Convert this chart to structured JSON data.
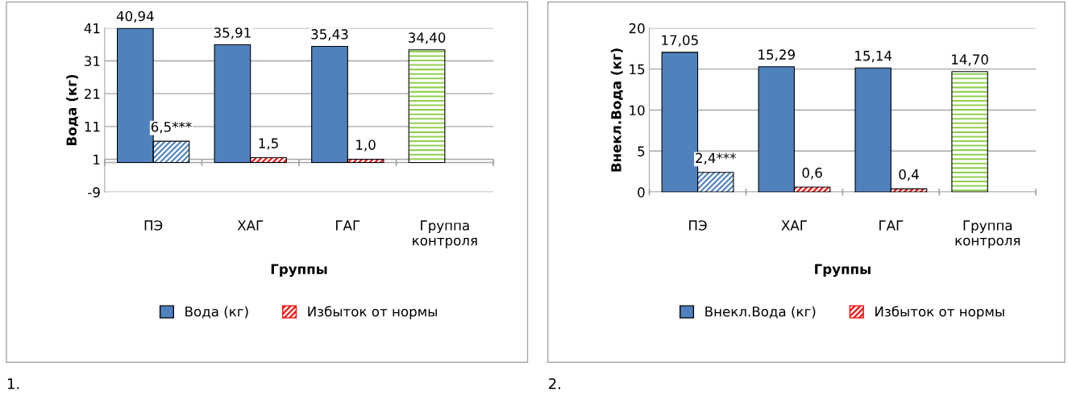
{
  "chart_data": [
    {
      "type": "bar",
      "xlabel": "Группы",
      "ylabel": "Вода (кг)",
      "categories": [
        "ПЭ",
        "ХАГ",
        "ГАГ",
        "Группа\nконтроля"
      ],
      "series": [
        {
          "name": "Вода (кг)",
          "color": "#4f81bd",
          "colors": [
            "#4f81bd",
            "#4f81bd",
            "#4f81bd",
            "#92d050"
          ],
          "values": [
            40.94,
            35.91,
            35.43,
            34.4
          ],
          "value_labels": [
            "40,94",
            "35,91",
            "35,43",
            "34,40"
          ]
        },
        {
          "name": "Избыток от нормы",
          "color": "#ff0000",
          "colors": [
            "#4f81bd",
            "#ff0000",
            "#ff0000",
            null
          ],
          "values": [
            6.5,
            1.5,
            1.0,
            null
          ],
          "value_labels": [
            "6,5***",
            "1,5",
            "1,0",
            null
          ]
        }
      ],
      "ylim": [
        -9,
        41
      ],
      "yticks": [
        -9,
        1,
        11,
        21,
        31,
        41
      ],
      "grid": "y",
      "legend": "bottom",
      "annotations": [
        "1."
      ]
    },
    {
      "type": "bar",
      "xlabel": "Группы",
      "ylabel": "Внекл.Вода (кг)",
      "categories": [
        "ПЭ",
        "ХАГ",
        "ГАГ",
        "Группа\nконтроля"
      ],
      "series": [
        {
          "name": "Внекл.Вода (кг)",
          "color": "#4f81bd",
          "colors": [
            "#4f81bd",
            "#4f81bd",
            "#4f81bd",
            "#92d050"
          ],
          "values": [
            17.05,
            15.29,
            15.14,
            14.7
          ],
          "value_labels": [
            "17,05",
            "15,29",
            "15,14",
            "14,70"
          ]
        },
        {
          "name": "Избыток от нормы",
          "color": "#ff0000",
          "colors": [
            "#4f81bd",
            "#ff0000",
            "#ff0000",
            null
          ],
          "values": [
            2.4,
            0.6,
            0.4,
            null
          ],
          "value_labels": [
            "2,4***",
            "0,6",
            "0,4",
            null
          ]
        }
      ],
      "ylim": [
        0,
        20
      ],
      "yticks": [
        0,
        5,
        10,
        15,
        20
      ],
      "grid": "y",
      "legend": "bottom",
      "annotations": [
        "2."
      ]
    }
  ]
}
